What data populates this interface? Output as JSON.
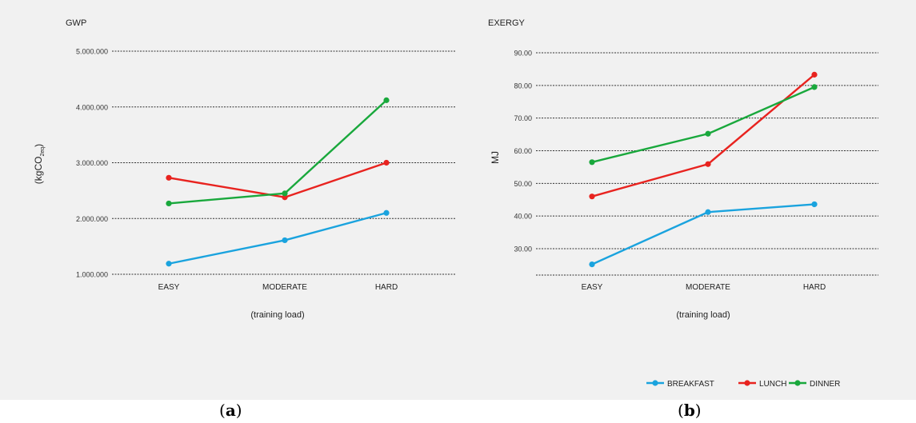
{
  "panels": [
    {
      "label_open": "(",
      "label_letter": "a",
      "label_close": ")"
    },
    {
      "label_open": "(",
      "label_letter": "b",
      "label_close": ")"
    }
  ],
  "legend": [
    {
      "name": "BREAKFAST",
      "color": "#1aa3de"
    },
    {
      "name": "LUNCH",
      "color": "#e8231f"
    },
    {
      "name": "DINNER",
      "color": "#19a83c"
    }
  ],
  "chart_data": [
    {
      "type": "line",
      "title": "GWP",
      "ylabel": "(kgCO2eq)",
      "ylabel_main": "(kgCO",
      "ylabel_sub": "2eq",
      "ylabel_close": ")",
      "xlabel": "(training load)",
      "categories": [
        "EASY",
        "MODERATE",
        "HARD"
      ],
      "yticks": [
        {
          "value": 1000,
          "label": "1.000.000"
        },
        {
          "value": 2000,
          "label": "2.000.000"
        },
        {
          "value": 3000,
          "label": "3.000.000"
        },
        {
          "value": 4000,
          "label": "4.000.000"
        },
        {
          "value": 5000,
          "label": "5.000.000"
        }
      ],
      "ylim": [
        1000,
        5000
      ],
      "grid": true,
      "series": [
        {
          "name": "BREAKFAST",
          "color": "#1aa3de",
          "values": [
            1190,
            1610,
            2100
          ]
        },
        {
          "name": "LUNCH",
          "color": "#e8231f",
          "values": [
            2730,
            2380,
            3000
          ]
        },
        {
          "name": "DINNER",
          "color": "#19a83c",
          "values": [
            2270,
            2450,
            4120
          ]
        }
      ]
    },
    {
      "type": "line",
      "title": "EXERGY",
      "ylabel": "MJ",
      "xlabel": "(training load)",
      "categories": [
        "EASY",
        "MODERATE",
        "HARD"
      ],
      "yticks": [
        {
          "value": 30,
          "label": "30.00"
        },
        {
          "value": 40,
          "label": "40.00"
        },
        {
          "value": 50,
          "label": "50.00"
        },
        {
          "value": 60,
          "label": "60.00"
        },
        {
          "value": 70,
          "label": "70.00"
        },
        {
          "value": 80,
          "label": "80.00"
        },
        {
          "value": 90,
          "label": "90.00"
        }
      ],
      "ylim": [
        22,
        90
      ],
      "grid": true,
      "series": [
        {
          "name": "BREAKFAST",
          "color": "#1aa3de",
          "values": [
            25.2,
            41.2,
            43.6
          ]
        },
        {
          "name": "LUNCH",
          "color": "#e8231f",
          "values": [
            46,
            55.9,
            83.3
          ]
        },
        {
          "name": "DINNER",
          "color": "#19a83c",
          "values": [
            56.5,
            65.2,
            79.5
          ]
        }
      ],
      "legend_position": "bottom-right"
    }
  ]
}
